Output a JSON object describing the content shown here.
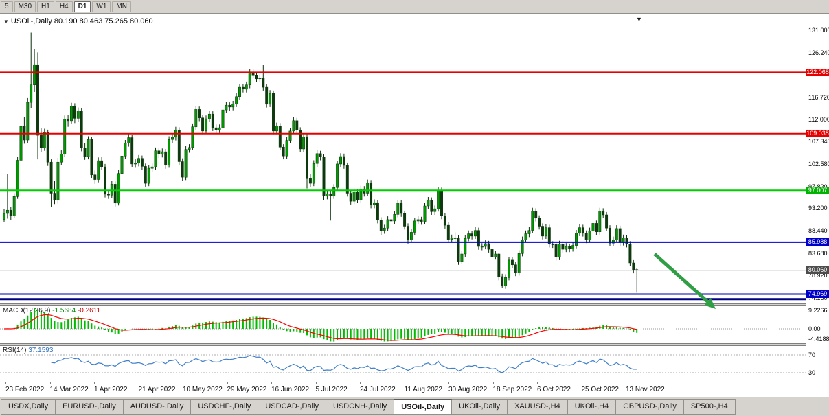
{
  "toolbar": {
    "timeframes": [
      {
        "label": "5"
      },
      {
        "label": "M30"
      },
      {
        "label": "H1"
      },
      {
        "label": "H4"
      },
      {
        "label": "D1",
        "active": true
      },
      {
        "label": "W1"
      },
      {
        "label": "MN"
      }
    ]
  },
  "icons": {
    "dropdown": "▼",
    "shift_marker": "▼"
  },
  "chart": {
    "title": "USOil-,Daily",
    "ohlc": "80.190 80.463 75.265 80.060"
  },
  "macd_panel": {
    "name": "MACD(12,26,9)",
    "value_main": "-1.5684",
    "value_signal": "-0.2611",
    "axis_top": "9.2266",
    "axis_zero": "0.00",
    "axis_bottom": "-4.4188"
  },
  "rsi_panel": {
    "name": "RSI(14)",
    "value": "37.1593",
    "level_top": "70",
    "level_bottom": "30"
  },
  "price_axis": {
    "regular": [
      {
        "text": "131.000",
        "price": 131.0
      },
      {
        "text": "126.240",
        "price": 126.24
      },
      {
        "text": "116.720",
        "price": 116.72
      },
      {
        "text": "112.000",
        "price": 112.0
      },
      {
        "text": "107.340",
        "price": 107.34
      },
      {
        "text": "102.580",
        "price": 102.58
      },
      {
        "text": "97.820",
        "price": 97.82
      },
      {
        "text": "93.200",
        "price": 93.2
      },
      {
        "text": "88.440",
        "price": 88.44
      },
      {
        "text": "83.680",
        "price": 83.68
      },
      {
        "text": "78.920",
        "price": 78.92
      },
      {
        "text": "74.160",
        "price": 74.16
      }
    ],
    "special": [
      {
        "text": "122.068",
        "price": 122.068,
        "bg": "#e60000"
      },
      {
        "text": "109.038",
        "price": 109.038,
        "bg": "#e60000"
      },
      {
        "text": "97.007",
        "price": 97.007,
        "bg": "#00b300"
      },
      {
        "text": "85.988",
        "price": 85.988,
        "bg": "#0000cc"
      },
      {
        "text": "80.060",
        "price": 80.06,
        "bg": "#4d4d4d"
      },
      {
        "text": "74.969",
        "price": 74.969,
        "bg": "#0000cc"
      }
    ]
  },
  "time_axis": {
    "labels": [
      "23 Feb 2022",
      "14 Mar 2022",
      "1 Apr 2022",
      "21 Apr 2022",
      "10 May 2022",
      "29 May 2022",
      "16 Jun 2022",
      "5 Jul 2022",
      "24 Jul 2022",
      "11 Aug 2022",
      "30 Aug 2022",
      "18 Sep 2022",
      "6 Oct 2022",
      "25 Oct 2022",
      "13 Nov 2022"
    ]
  },
  "tabs": [
    {
      "label": "USDX,Daily"
    },
    {
      "label": "EURUSD-,Daily"
    },
    {
      "label": "AUDUSD-,Daily"
    },
    {
      "label": "USDCHF-,Daily"
    },
    {
      "label": "USDCAD-,Daily"
    },
    {
      "label": "USDCNH-,Daily"
    },
    {
      "label": "USOil-,Daily",
      "active": true
    },
    {
      "label": "UKOil-,Daily"
    },
    {
      "label": "XAUUSD-,H4"
    },
    {
      "label": "UKOil-,H4"
    },
    {
      "label": "GBPUSD-,Daily"
    },
    {
      "label": "SP500-,H4"
    }
  ],
  "chart_data": {
    "type": "candlestick",
    "symbol": "USOil-",
    "timeframe": "Daily",
    "last_candle_ohlc": [
      80.19,
      80.463,
      75.265,
      80.06
    ],
    "ylim": [
      73.0,
      131.6
    ],
    "x_labels": [
      "23 Feb 2022",
      "14 Mar 2022",
      "1 Apr 2022",
      "21 Apr 2022",
      "10 May 2022",
      "29 May 2022",
      "16 Jun 2022",
      "5 Jul 2022",
      "24 Jul 2022",
      "11 Aug 2022",
      "30 Aug 2022",
      "18 Sep 2022",
      "6 Oct 2022",
      "25 Oct 2022",
      "13 Nov 2022"
    ],
    "horizontal_lines": [
      {
        "price": 122.068,
        "color": "#e60000",
        "width": 2
      },
      {
        "price": 109.038,
        "color": "#e60000",
        "width": 2
      },
      {
        "price": 97.007,
        "color": "#00ce00",
        "width": 2
      },
      {
        "price": 85.988,
        "color": "#0000d0",
        "width": 2
      },
      {
        "price": 80.06,
        "color": "#404040",
        "width": 1
      },
      {
        "price": 74.969,
        "color": "#0000b0",
        "width": 2
      },
      {
        "price": 73.9,
        "color": "#000080",
        "width": 3
      }
    ],
    "indicators": {
      "macd": {
        "params": [
          12,
          26,
          9
        ],
        "current_main": -1.5684,
        "current_signal": -0.2611,
        "scale_max": 9.2266,
        "scale_min": -4.4188,
        "histogram_color": "#00bb00",
        "signal_color": "#ff0000"
      },
      "rsi": {
        "period": 14,
        "current": 37.1593,
        "levels": [
          70,
          30
        ],
        "line_color": "#3f7fca",
        "level_color": "#ababab"
      }
    },
    "annotation_arrow": {
      "from": [
        953,
        370
      ],
      "to": [
        1042,
        450
      ],
      "color": "#2f9e44",
      "width": 5
    },
    "candle_colors": {
      "bull": "#009900",
      "bear": "#0d3a0d",
      "outline": "#0a300a"
    },
    "candles": [
      [
        90.8,
        93.0,
        90.2,
        92.1
      ],
      [
        92.1,
        100.5,
        91.0,
        92.8
      ],
      [
        92.8,
        93.5,
        90.7,
        91.6
      ],
      [
        91.6,
        96.4,
        91.1,
        95.7
      ],
      [
        95.7,
        104.2,
        95.2,
        103.4
      ],
      [
        103.4,
        111.5,
        102.9,
        110.6
      ],
      [
        110.6,
        112.6,
        106.9,
        107.7
      ],
      [
        107.7,
        116.6,
        107.0,
        115.7
      ],
      [
        115.7,
        130.5,
        114.5,
        119.4
      ],
      [
        119.4,
        127.0,
        117.9,
        123.7
      ],
      [
        123.7,
        126.3,
        103.6,
        108.7
      ],
      [
        108.7,
        110.2,
        105.1,
        106.0
      ],
      [
        106.0,
        110.1,
        105.4,
        109.3
      ],
      [
        109.3,
        109.9,
        102.2,
        103.0
      ],
      [
        103.0,
        103.6,
        93.5,
        96.4
      ],
      [
        96.4,
        99.0,
        94.1,
        95.0
      ],
      [
        95.0,
        103.9,
        94.2,
        103.0
      ],
      [
        103.0,
        105.5,
        102.3,
        104.7
      ],
      [
        104.7,
        112.9,
        104.1,
        112.1
      ],
      [
        112.1,
        113.0,
        110.5,
        111.8
      ],
      [
        111.8,
        115.6,
        111.2,
        114.9
      ],
      [
        114.9,
        115.5,
        111.3,
        112.3
      ],
      [
        112.3,
        114.6,
        111.6,
        113.9
      ],
      [
        113.9,
        114.4,
        105.3,
        106.0
      ],
      [
        106.0,
        107.1,
        103.5,
        104.2
      ],
      [
        104.2,
        108.5,
        103.6,
        107.8
      ],
      [
        107.8,
        108.3,
        99.6,
        100.3
      ],
      [
        100.3,
        101.2,
        98.4,
        99.3
      ],
      [
        99.3,
        104.0,
        98.7,
        103.3
      ],
      [
        103.3,
        104.1,
        101.3,
        102.0
      ],
      [
        102.0,
        102.6,
        95.5,
        96.2
      ],
      [
        96.2,
        97.1,
        95.2,
        96.0
      ],
      [
        96.0,
        99.0,
        95.4,
        98.3
      ],
      [
        98.3,
        98.9,
        93.6,
        94.3
      ],
      [
        94.3,
        101.3,
        93.8,
        100.6
      ],
      [
        100.6,
        105.0,
        100.0,
        104.3
      ],
      [
        104.3,
        107.7,
        103.7,
        107.0
      ],
      [
        107.0,
        109.0,
        106.3,
        108.2
      ],
      [
        108.2,
        108.8,
        101.9,
        102.6
      ],
      [
        102.6,
        103.6,
        101.8,
        102.8
      ],
      [
        102.8,
        104.5,
        102.1,
        103.8
      ],
      [
        103.8,
        104.4,
        101.4,
        102.1
      ],
      [
        102.1,
        102.7,
        97.8,
        98.5
      ],
      [
        98.5,
        102.4,
        97.9,
        101.7
      ],
      [
        101.7,
        102.7,
        101.0,
        102.0
      ],
      [
        102.0,
        106.1,
        101.4,
        105.4
      ],
      [
        105.4,
        106.0,
        103.9,
        104.7
      ],
      [
        104.7,
        105.9,
        104.0,
        105.2
      ],
      [
        105.2,
        105.8,
        101.6,
        102.4
      ],
      [
        102.4,
        108.5,
        101.8,
        107.8
      ],
      [
        107.8,
        109.0,
        107.1,
        108.3
      ],
      [
        108.3,
        110.5,
        107.6,
        109.8
      ],
      [
        109.8,
        110.4,
        102.4,
        103.1
      ],
      [
        103.1,
        103.8,
        99.1,
        99.8
      ],
      [
        99.8,
        106.4,
        99.2,
        105.7
      ],
      [
        105.7,
        106.8,
        105.0,
        106.1
      ],
      [
        106.1,
        111.2,
        105.5,
        110.5
      ],
      [
        110.5,
        114.9,
        109.9,
        114.2
      ],
      [
        114.2,
        114.8,
        111.7,
        112.4
      ],
      [
        112.4,
        113.0,
        108.9,
        109.6
      ],
      [
        109.6,
        112.9,
        109.0,
        112.2
      ],
      [
        112.2,
        113.9,
        111.5,
        113.2
      ],
      [
        113.2,
        113.8,
        109.6,
        110.3
      ],
      [
        110.3,
        111.0,
        109.1,
        109.8
      ],
      [
        109.8,
        111.0,
        109.2,
        110.3
      ],
      [
        110.3,
        114.8,
        109.7,
        114.1
      ],
      [
        114.1,
        115.8,
        113.4,
        115.1
      ],
      [
        115.1,
        115.7,
        113.9,
        114.7
      ],
      [
        114.7,
        116.0,
        114.0,
        115.3
      ],
      [
        115.3,
        117.6,
        114.7,
        116.9
      ],
      [
        116.9,
        119.6,
        116.2,
        118.9
      ],
      [
        118.9,
        119.5,
        117.8,
        118.5
      ],
      [
        118.5,
        120.1,
        117.8,
        119.4
      ],
      [
        119.4,
        122.8,
        118.7,
        122.1
      ],
      [
        122.1,
        122.7,
        120.8,
        121.5
      ],
      [
        121.5,
        122.2,
        120.0,
        120.7
      ],
      [
        120.7,
        121.6,
        120.0,
        120.9
      ],
      [
        120.9,
        123.7,
        118.2,
        118.9
      ],
      [
        118.9,
        119.5,
        114.6,
        115.3
      ],
      [
        115.3,
        118.3,
        114.7,
        117.6
      ],
      [
        117.6,
        118.2,
        108.9,
        109.6
      ],
      [
        109.6,
        111.4,
        108.9,
        110.7
      ],
      [
        110.7,
        111.3,
        105.5,
        106.2
      ],
      [
        106.2,
        106.8,
        103.6,
        104.3
      ],
      [
        104.3,
        108.3,
        103.7,
        107.6
      ],
      [
        107.6,
        110.3,
        107.0,
        109.6
      ],
      [
        109.6,
        112.5,
        109.0,
        111.8
      ],
      [
        111.8,
        112.4,
        109.1,
        109.8
      ],
      [
        109.8,
        110.4,
        105.1,
        105.8
      ],
      [
        105.8,
        109.1,
        105.2,
        108.4
      ],
      [
        108.4,
        109.0,
        97.4,
        99.5
      ],
      [
        99.5,
        100.4,
        97.8,
        98.5
      ],
      [
        98.5,
        103.4,
        97.9,
        102.7
      ],
      [
        102.7,
        105.5,
        102.0,
        104.8
      ],
      [
        104.8,
        105.4,
        103.4,
        104.1
      ],
      [
        104.1,
        104.7,
        94.9,
        95.8
      ],
      [
        95.8,
        97.0,
        95.1,
        96.3
      ],
      [
        96.3,
        96.9,
        90.6,
        95.8
      ],
      [
        95.8,
        98.3,
        95.2,
        97.6
      ],
      [
        97.6,
        103.3,
        97.0,
        102.6
      ],
      [
        102.6,
        104.9,
        102.0,
        104.2
      ],
      [
        104.2,
        104.8,
        101.6,
        102.3
      ],
      [
        102.3,
        102.9,
        95.7,
        96.4
      ],
      [
        96.4,
        97.1,
        94.0,
        94.7
      ],
      [
        94.7,
        97.4,
        94.1,
        96.7
      ],
      [
        96.7,
        97.3,
        94.3,
        95.0
      ],
      [
        95.0,
        98.0,
        94.4,
        97.3
      ],
      [
        97.3,
        97.9,
        95.7,
        96.4
      ],
      [
        96.4,
        99.3,
        95.8,
        98.6
      ],
      [
        98.6,
        99.2,
        93.2,
        93.9
      ],
      [
        93.9,
        95.1,
        93.2,
        94.4
      ],
      [
        94.4,
        95.0,
        90.0,
        90.7
      ],
      [
        90.7,
        91.3,
        87.5,
        88.5
      ],
      [
        88.5,
        89.7,
        87.8,
        89.0
      ],
      [
        89.0,
        91.5,
        88.4,
        90.8
      ],
      [
        90.8,
        91.4,
        89.8,
        90.5
      ],
      [
        90.5,
        92.6,
        89.9,
        91.9
      ],
      [
        91.9,
        95.0,
        91.3,
        94.3
      ],
      [
        94.3,
        94.9,
        91.4,
        92.1
      ],
      [
        92.1,
        92.7,
        88.7,
        89.4
      ],
      [
        89.4,
        90.0,
        85.7,
        86.5
      ],
      [
        86.5,
        88.8,
        85.9,
        88.1
      ],
      [
        88.1,
        91.2,
        87.5,
        90.5
      ],
      [
        90.5,
        91.5,
        89.8,
        90.8
      ],
      [
        90.8,
        91.4,
        89.7,
        90.4
      ],
      [
        90.4,
        94.4,
        89.8,
        93.7
      ],
      [
        93.7,
        95.6,
        93.1,
        94.9
      ],
      [
        94.9,
        95.5,
        91.8,
        92.5
      ],
      [
        92.5,
        93.8,
        91.8,
        93.1
      ],
      [
        93.1,
        97.7,
        92.5,
        97.0
      ],
      [
        97.0,
        97.6,
        90.9,
        91.6
      ],
      [
        91.6,
        92.2,
        88.9,
        89.6
      ],
      [
        89.6,
        90.2,
        85.9,
        86.6
      ],
      [
        86.6,
        87.6,
        85.9,
        86.9
      ],
      [
        86.9,
        88.1,
        86.0,
        86.9
      ],
      [
        86.9,
        87.5,
        81.2,
        81.9
      ],
      [
        81.9,
        84.2,
        81.3,
        83.5
      ],
      [
        83.5,
        87.5,
        82.9,
        86.8
      ],
      [
        86.8,
        88.5,
        86.2,
        87.8
      ],
      [
        87.8,
        88.4,
        86.6,
        87.3
      ],
      [
        87.3,
        89.2,
        86.7,
        88.5
      ],
      [
        88.5,
        89.1,
        84.4,
        85.1
      ],
      [
        85.1,
        85.8,
        84.3,
        85.1
      ],
      [
        85.1,
        86.4,
        84.5,
        85.7
      ],
      [
        85.7,
        86.3,
        83.8,
        84.5
      ],
      [
        84.5,
        85.1,
        82.2,
        82.9
      ],
      [
        82.9,
        84.2,
        82.3,
        83.5
      ],
      [
        83.5,
        83.7,
        77.9,
        78.7
      ],
      [
        78.7,
        79.3,
        76.3,
        76.7
      ],
      [
        76.7,
        79.2,
        76.1,
        78.5
      ],
      [
        78.5,
        82.9,
        77.9,
        82.2
      ],
      [
        82.2,
        82.8,
        80.5,
        81.2
      ],
      [
        81.2,
        81.8,
        78.8,
        79.5
      ],
      [
        79.5,
        84.3,
        78.9,
        83.6
      ],
      [
        83.6,
        87.2,
        83.0,
        86.5
      ],
      [
        86.5,
        88.5,
        85.9,
        87.8
      ],
      [
        87.8,
        89.2,
        87.1,
        88.5
      ],
      [
        88.5,
        93.3,
        87.9,
        92.6
      ],
      [
        92.6,
        93.2,
        90.4,
        91.1
      ],
      [
        91.1,
        91.7,
        88.7,
        89.4
      ],
      [
        89.4,
        90.0,
        86.6,
        87.3
      ],
      [
        87.3,
        89.8,
        86.7,
        89.1
      ],
      [
        89.1,
        89.7,
        84.9,
        85.6
      ],
      [
        85.6,
        86.2,
        84.8,
        85.5
      ],
      [
        85.5,
        86.1,
        82.1,
        82.8
      ],
      [
        82.8,
        86.3,
        82.2,
        85.6
      ],
      [
        85.6,
        86.2,
        83.8,
        84.5
      ],
      [
        84.5,
        85.8,
        83.9,
        85.1
      ],
      [
        85.1,
        85.7,
        83.9,
        84.6
      ],
      [
        84.6,
        86.0,
        84.0,
        85.3
      ],
      [
        85.3,
        88.6,
        84.7,
        87.9
      ],
      [
        87.9,
        89.8,
        87.3,
        89.1
      ],
      [
        89.1,
        89.7,
        87.2,
        87.9
      ],
      [
        87.9,
        88.5,
        85.8,
        86.5
      ],
      [
        86.5,
        89.1,
        85.9,
        88.4
      ],
      [
        88.4,
        90.7,
        87.8,
        90.0
      ],
      [
        90.0,
        90.6,
        87.5,
        88.2
      ],
      [
        88.2,
        93.3,
        87.6,
        92.6
      ],
      [
        92.6,
        93.2,
        91.1,
        91.8
      ],
      [
        91.8,
        92.4,
        88.3,
        89.0
      ],
      [
        89.0,
        89.6,
        85.1,
        85.8
      ],
      [
        85.8,
        87.2,
        85.2,
        86.5
      ],
      [
        86.5,
        89.6,
        85.9,
        88.9
      ],
      [
        88.9,
        89.5,
        85.2,
        85.9
      ],
      [
        85.9,
        87.6,
        85.3,
        86.9
      ],
      [
        86.9,
        87.5,
        84.9,
        85.6
      ],
      [
        85.6,
        86.2,
        80.9,
        81.6
      ],
      [
        81.6,
        82.2,
        79.4,
        80.1
      ],
      [
        80.19,
        80.46,
        75.27,
        80.06
      ]
    ]
  }
}
